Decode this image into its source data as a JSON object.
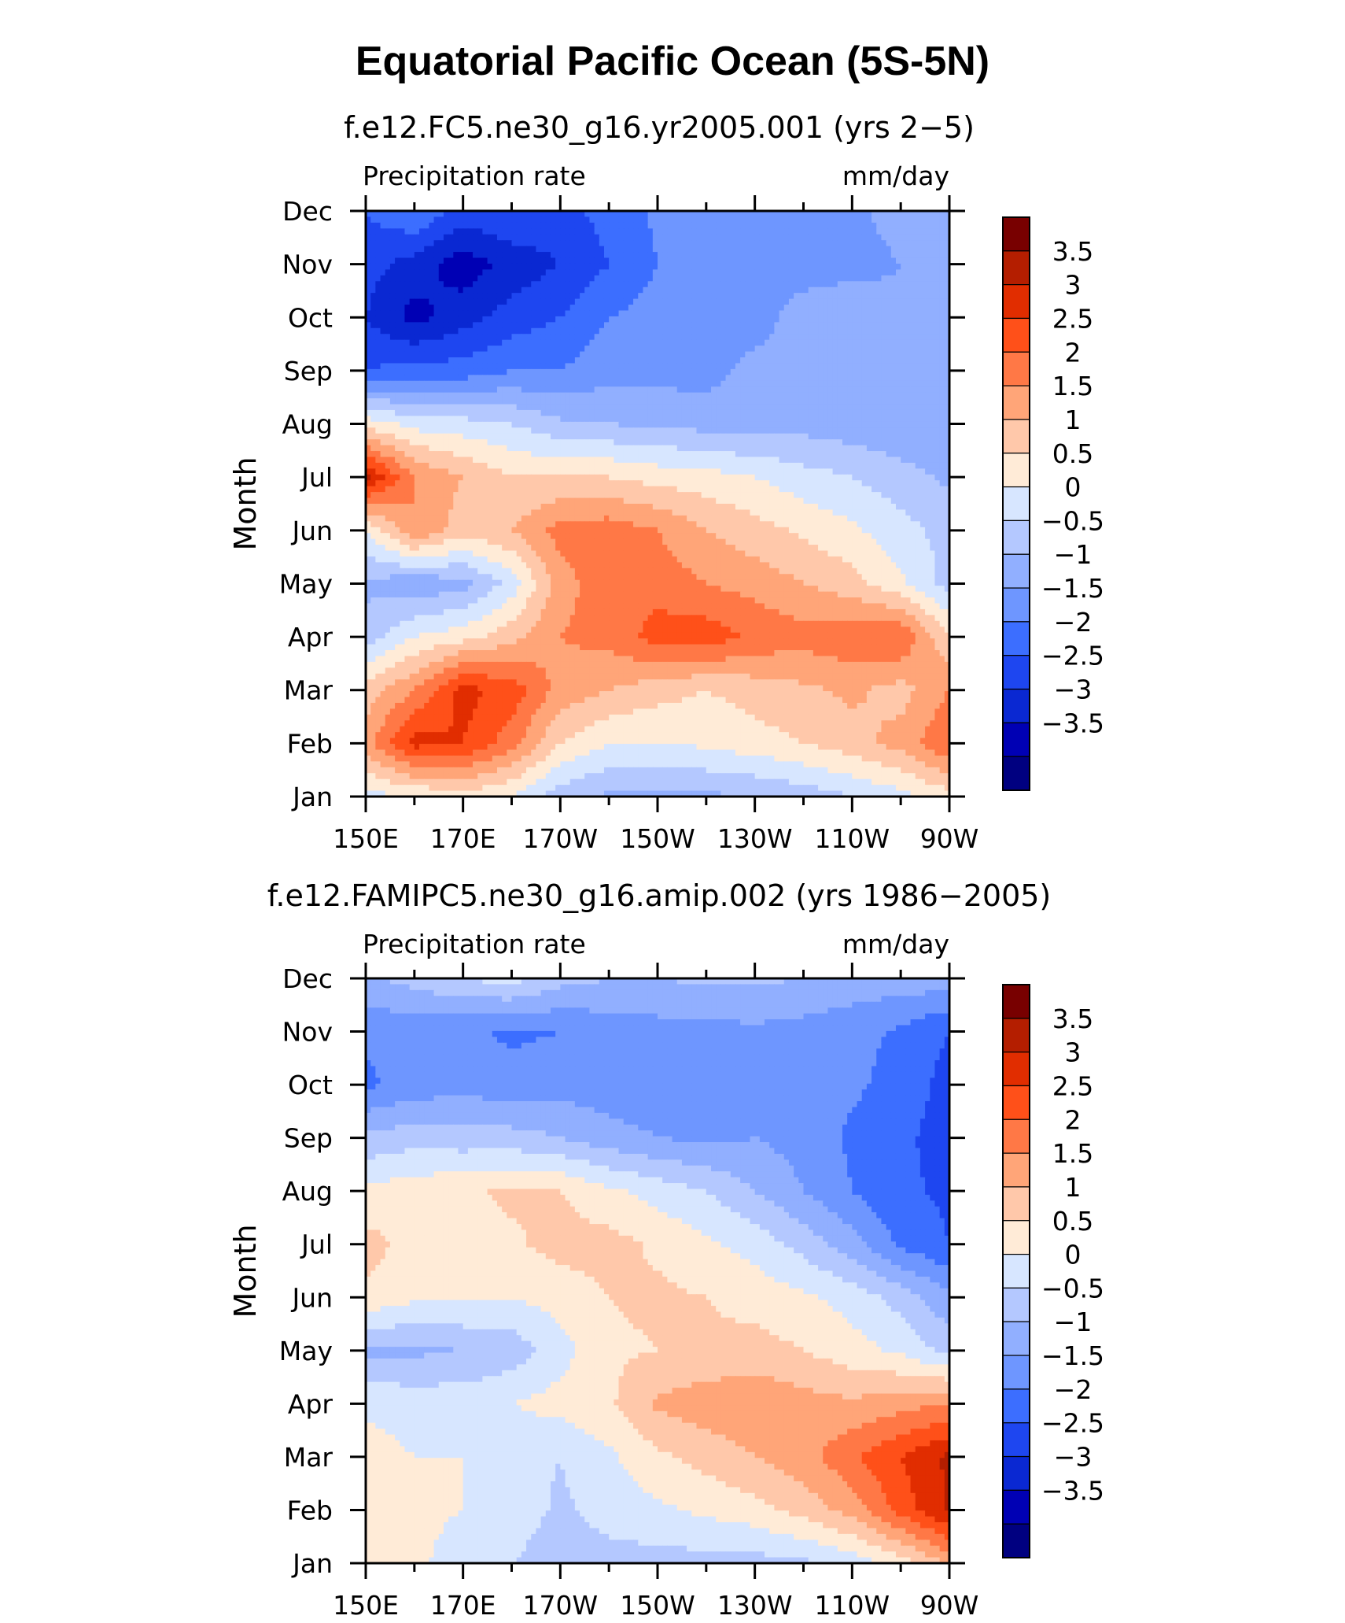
{
  "figure": {
    "title": "Equatorial Pacific Ocean (5S-5N)"
  },
  "chart_data": [
    {
      "type": "heatmap",
      "title": "f.e12.FC5.ne30_g16.yr2005.001 (yrs 2−5)",
      "left_label": "Precipitation rate",
      "right_label": "mm/day",
      "ylabel": "Month",
      "xlabel": "",
      "x_ticks": [
        "150E",
        "170E",
        "170W",
        "150W",
        "130W",
        "110W",
        "90W"
      ],
      "y_ticks": [
        "Jan",
        "Feb",
        "Mar",
        "Apr",
        "May",
        "Jun",
        "Jul",
        "Aug",
        "Sep",
        "Oct",
        "Nov",
        "Dec"
      ],
      "longitude_range": [
        150,
        270
      ],
      "colorbar_labels": [
        "3.5",
        "3",
        "2.5",
        "2",
        "1.5",
        "1",
        "0.5",
        "0",
        "−0.5",
        "−1",
        "−1.5",
        "−2",
        "−2.5",
        "−3",
        "−3.5"
      ],
      "levels": [
        -3.5,
        -3,
        -2.5,
        -2,
        -1.5,
        -1,
        -0.5,
        0,
        0.5,
        1,
        1.5,
        2,
        2.5,
        3,
        3.5
      ],
      "lon": [
        150,
        160,
        170,
        180,
        190,
        200,
        210,
        220,
        230,
        240,
        250,
        260,
        270
      ],
      "values": [
        [
          0.3,
          0.5,
          0.8,
          0.5,
          -0.3,
          -0.6,
          -0.6,
          -0.6,
          -0.5,
          -0.3,
          0.0,
          0.3,
          0.8
        ],
        [
          1.8,
          3.2,
          3.0,
          2.2,
          1.0,
          0.5,
          0.5,
          0.6,
          0.8,
          1.0,
          1.3,
          1.7,
          2.5
        ],
        [
          1.2,
          2.0,
          3.2,
          2.8,
          1.8,
          1.5,
          1.2,
          1.0,
          1.2,
          1.4,
          1.6,
          1.3,
          2.0
        ],
        [
          -0.3,
          0.5,
          0.8,
          1.3,
          2.0,
          2.2,
          2.7,
          2.8,
          2.4,
          2.2,
          2.4,
          2.5,
          1.0
        ],
        [
          -0.6,
          -0.9,
          -0.7,
          0.2,
          1.8,
          2.3,
          2.3,
          2.0,
          1.8,
          1.5,
          1.2,
          0.6,
          -0.2
        ],
        [
          0.5,
          2.0,
          1.2,
          1.5,
          2.2,
          2.3,
          2.0,
          1.5,
          1.2,
          0.9,
          0.6,
          0.2,
          -0.2
        ],
        [
          3.6,
          2.0,
          1.5,
          1.0,
          1.0,
          1.0,
          0.8,
          0.7,
          0.5,
          0.2,
          0.0,
          -0.3,
          -0.6
        ],
        [
          0.8,
          0.3,
          0.2,
          0.0,
          -0.4,
          -0.5,
          -0.6,
          -0.7,
          -0.8,
          -0.7,
          -0.8,
          -0.9,
          -1.0
        ],
        [
          -2.0,
          -1.8,
          -1.8,
          -1.5,
          -1.5,
          -1.2,
          -1.2,
          -1.2,
          -0.8,
          -0.7,
          -0.8,
          -1.0,
          -1.0
        ],
        [
          -2.5,
          -3.2,
          -2.7,
          -2.3,
          -2.0,
          -1.5,
          -1.3,
          -1.3,
          -1.3,
          -0.7,
          -0.6,
          -0.9,
          -1.0
        ],
        [
          -2.3,
          -2.7,
          -3.3,
          -2.8,
          -2.5,
          -2.0,
          -1.5,
          -1.4,
          -1.3,
          -1.3,
          -1.2,
          -1.0,
          -1.0
        ],
        [
          -2.0,
          -1.5,
          -2.2,
          -2.0,
          -2.2,
          -1.8,
          -1.4,
          -1.3,
          -1.3,
          -1.2,
          -1.1,
          -0.8,
          -0.7
        ]
      ]
    },
    {
      "type": "heatmap",
      "title": "f.e12.FAMIPC5.ne30_g16.amip.002 (yrs 1986−2005)",
      "left_label": "Precipitation rate",
      "right_label": "mm/day",
      "ylabel": "Month",
      "xlabel": "",
      "x_ticks": [
        "150E",
        "170E",
        "170W",
        "150W",
        "130W",
        "110W",
        "90W"
      ],
      "y_ticks": [
        "Jan",
        "Feb",
        "Mar",
        "Apr",
        "May",
        "Jun",
        "Jul",
        "Aug",
        "Sep",
        "Oct",
        "Nov",
        "Dec"
      ],
      "longitude_range": [
        150,
        270
      ],
      "colorbar_labels": [
        "3.5",
        "3",
        "2.5",
        "2",
        "1.5",
        "1",
        "0.5",
        "0",
        "−0.5",
        "−1",
        "−1.5",
        "−2",
        "−2.5",
        "−3",
        "−3.5"
      ],
      "levels": [
        -3.5,
        -3,
        -2.5,
        -2,
        -1.5,
        -1,
        -0.5,
        0,
        0.5,
        1,
        1.5,
        2,
        2.5,
        3,
        3.5
      ],
      "lon": [
        150,
        160,
        170,
        180,
        190,
        200,
        210,
        220,
        230,
        240,
        250,
        260,
        270
      ],
      "values": [
        [
          0.8,
          0.6,
          0.3,
          0.0,
          -0.3,
          -0.2,
          -0.2,
          -0.2,
          -0.2,
          -0.1,
          0.2,
          0.7,
          1.6
        ],
        [
          0.8,
          0.6,
          0.5,
          0.3,
          -0.1,
          0.2,
          0.4,
          0.6,
          0.8,
          1.2,
          1.7,
          2.7,
          3.6
        ],
        [
          0.7,
          0.5,
          0.5,
          0.2,
          0.0,
          0.4,
          0.9,
          1.2,
          1.5,
          1.8,
          2.4,
          3.0,
          3.6
        ],
        [
          0.4,
          0.3,
          0.3,
          0.5,
          0.7,
          0.9,
          1.6,
          1.8,
          1.9,
          1.7,
          1.6,
          1.8,
          2.0
        ],
        [
          -0.6,
          -0.6,
          -0.5,
          -0.3,
          0.3,
          0.9,
          1.0,
          1.1,
          1.2,
          1.0,
          0.7,
          0.4,
          -0.2
        ],
        [
          0.9,
          0.6,
          0.6,
          0.5,
          0.7,
          1.0,
          1.1,
          1.0,
          0.8,
          0.6,
          0.3,
          -0.2,
          -0.9
        ],
        [
          1.2,
          0.8,
          0.8,
          0.9,
          1.2,
          1.2,
          0.9,
          0.6,
          0.3,
          -0.2,
          -0.8,
          -1.6,
          -2.0
        ],
        [
          0.6,
          0.8,
          0.9,
          1.1,
          1.0,
          0.6,
          0.3,
          0.0,
          -0.5,
          -1.0,
          -1.5,
          -1.9,
          -2.1
        ],
        [
          -0.4,
          -0.2,
          -0.3,
          -0.3,
          -0.5,
          -0.8,
          -1.0,
          -1.1,
          -1.0,
          -1.2,
          -1.6,
          -1.9,
          -2.2
        ],
        [
          -1.6,
          -1.3,
          -1.2,
          -1.3,
          -1.2,
          -1.3,
          -1.3,
          -1.2,
          -1.0,
          -1.2,
          -1.4,
          -1.7,
          -2.2
        ],
        [
          -1.4,
          -1.3,
          -1.4,
          -1.6,
          -1.5,
          -1.3,
          -1.2,
          -1.2,
          -1.1,
          -1.2,
          -1.3,
          -1.6,
          -2.0
        ],
        [
          -0.6,
          -0.3,
          0.0,
          0.2,
          -0.3,
          -0.5,
          -0.5,
          -0.4,
          -0.4,
          -0.5,
          -0.7,
          -0.7,
          -0.7
        ]
      ]
    }
  ],
  "colors": {
    "palette": [
      "#000080",
      "#0000b4",
      "#0a28d2",
      "#1e46f0",
      "#3c6eff",
      "#6e96ff",
      "#91afff",
      "#b4c8ff",
      "#d7e6ff",
      "#ffebd7",
      "#ffc8aa",
      "#ffa578",
      "#ff7846",
      "#ff5019",
      "#e12d00",
      "#b41e00",
      "#780000"
    ]
  }
}
